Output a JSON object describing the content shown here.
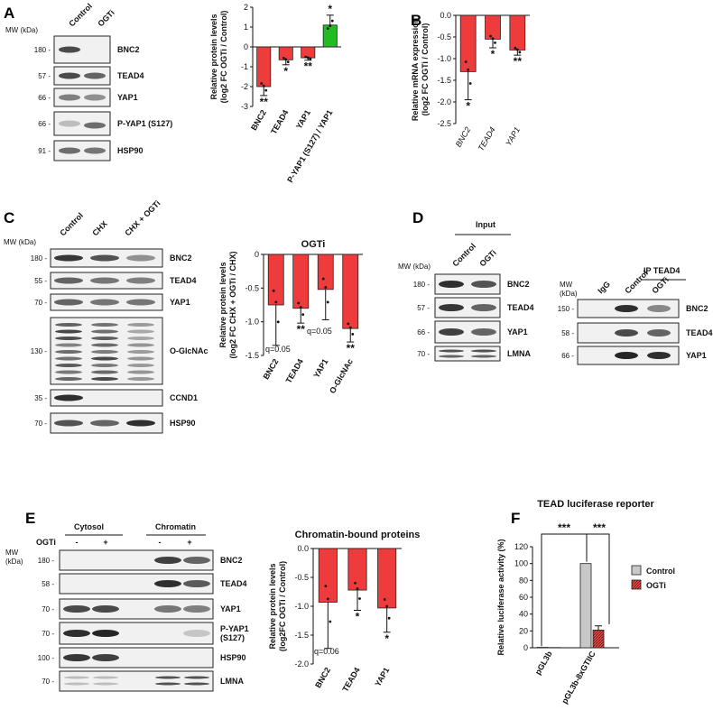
{
  "panels": {
    "A": {
      "label": "A",
      "mw_header": "MW (kDa)",
      "lanes": [
        "Control",
        "OGTi"
      ],
      "blots": [
        {
          "mw": "180 -",
          "name": "BNC2",
          "c": 0.75,
          "t": 0.0
        },
        {
          "mw": "57 -",
          "name": "TEAD4",
          "c": 0.75,
          "t": 0.6
        },
        {
          "mw": "66 -",
          "name": "YAP1",
          "c": 0.45,
          "t": 0.35
        },
        {
          "mw": "66 -",
          "name": "P-YAP1 (S127)",
          "c": 0.1,
          "t": 0.55
        },
        {
          "mw": "91 -",
          "name": "HSP90",
          "c": 0.55,
          "t": 0.5
        }
      ]
    },
    "B": {
      "label": "B"
    },
    "C": {
      "label": "C",
      "mw_header": "MW (kDa)",
      "lanes": [
        "Control",
        "CHX",
        "CHX + OGTi"
      ],
      "blots": [
        {
          "mw": "180 -",
          "name": "BNC2",
          "c": 0.85,
          "t": 0.7,
          "u": 0.35
        },
        {
          "mw": "55 -",
          "name": "TEAD4",
          "c": 0.6,
          "t": 0.5,
          "u": 0.45
        },
        {
          "mw": "70 -",
          "name": "YAP1",
          "c": 0.6,
          "t": 0.5,
          "u": 0.5
        },
        {
          "mw": "130 -",
          "name": "O-GlcNAc",
          "c": 0.8,
          "t": 0.75,
          "u": 0.4
        },
        {
          "mw": "35 -",
          "name": "CCND1",
          "c": 0.9,
          "t": 0.0,
          "u": 0.0
        },
        {
          "mw": "70 -",
          "name": "HSP90",
          "c": 0.7,
          "t": 0.6,
          "u": 0.9
        }
      ]
    },
    "D": {
      "label": "D",
      "input_header": "Input",
      "ip_header": "IP TEAD4",
      "mw_header": "MW (kDa)",
      "mw_header2": "MW\n(kDa)",
      "lanes_input": [
        "Control",
        "OGTi"
      ],
      "lanes_ip": [
        "IgG",
        "Control",
        "OGTi"
      ],
      "blots_input": [
        {
          "mw": "180 -",
          "name": "BNC2"
        },
        {
          "mw": "57 -",
          "name": "TEAD4"
        },
        {
          "mw": "66 -",
          "name": "YAP1"
        },
        {
          "mw": "70 -",
          "name": "LMNA"
        }
      ],
      "blots_ip": [
        {
          "mw": "150 -",
          "name": "BNC2"
        },
        {
          "mw": "58 -",
          "name": "TEAD4"
        },
        {
          "mw": "66 -",
          "name": "YAP1"
        }
      ]
    },
    "E": {
      "label": "E",
      "cytosol": "Cytosol",
      "chromatin": "Chromatin",
      "ogti": "OGTi",
      "minus": "-",
      "plus": "+",
      "mw_header": "MW\n(kDa)",
      "blots": [
        {
          "mw": "180 -",
          "name": "BNC2"
        },
        {
          "mw": "58 -",
          "name": "TEAD4"
        },
        {
          "mw": "70 -",
          "name": "YAP1"
        },
        {
          "mw": "70 -",
          "name": "P-YAP1\n(S127)"
        },
        {
          "mw": "100 -",
          "name": "HSP90"
        },
        {
          "mw": "70 -",
          "name": "LMNA"
        }
      ]
    },
    "F": {
      "label": "F"
    }
  },
  "chart_data": [
    {
      "id": "A",
      "type": "bar",
      "title": "",
      "ylabel": "Relative protein levels (log2 FC OGTi / Control)",
      "categories": [
        "BNC2",
        "TEAD4",
        "YAP1",
        "P-YAP1 (S127) / YAP1"
      ],
      "values": [
        -2.0,
        -0.65,
        -0.55,
        1.1
      ],
      "errors": [
        0.45,
        0.25,
        0.12,
        0.5
      ],
      "colors": [
        "#ee3b3b",
        "#ee3b3b",
        "#ee3b3b",
        "#22bb22"
      ],
      "significance": [
        "**",
        "*",
        "**",
        "*"
      ],
      "ylim": [
        -3,
        2
      ],
      "yticks": [
        "-3",
        "-2",
        "-1",
        "0",
        "1",
        "2"
      ]
    },
    {
      "id": "B",
      "type": "bar",
      "title": "",
      "ylabel": "Relative mRNA expression (log2 FC OGTi / Control)",
      "categories": [
        "BNC2",
        "TEAD4",
        "YAP1"
      ],
      "values": [
        -1.3,
        -0.55,
        -0.8
      ],
      "errors": [
        0.65,
        0.2,
        0.12
      ],
      "colors": [
        "#ee3b3b",
        "#ee3b3b",
        "#ee3b3b"
      ],
      "significance": [
        "*",
        "*",
        "**"
      ],
      "ylim": [
        -2.5,
        0
      ],
      "yticks": [
        "-2.5",
        "-2.0",
        "-1.5",
        "-1.0",
        "-0.5",
        "0.0"
      ]
    },
    {
      "id": "C",
      "type": "bar",
      "title": "OGTi",
      "ylabel": "Relative protein levels (log2 FC CHX + OGTi / CHX)",
      "categories": [
        "BNC2",
        "TEAD4",
        "YAP1",
        "O-GlcNAc"
      ],
      "values": [
        -0.75,
        -0.8,
        -0.52,
        -1.1
      ],
      "errors": [
        0.6,
        0.22,
        0.45,
        0.2
      ],
      "colors": [
        "#ee3b3b",
        "#ee3b3b",
        "#ee3b3b",
        "#ee3b3b"
      ],
      "significance": [
        "",
        "**",
        "",
        "**"
      ],
      "annotations": [
        "q=0.05",
        "q=0.05"
      ],
      "ylim": [
        -1.5,
        0
      ],
      "yticks": [
        "-1.5",
        "-1.0",
        "-0.5",
        "0"
      ]
    },
    {
      "id": "E",
      "type": "bar",
      "title": "Chromatin-bound proteins",
      "ylabel": "Relative protein levels (log2FC OGTi / Control)",
      "categories": [
        "BNC2",
        "TEAD4",
        "YAP1"
      ],
      "values": [
        -0.93,
        -0.72,
        -1.03
      ],
      "errors": [
        0.8,
        0.35,
        0.42
      ],
      "colors": [
        "#ee3b3b",
        "#ee3b3b",
        "#ee3b3b"
      ],
      "significance": [
        "",
        "*",
        "*"
      ],
      "annotations": [
        "q=0.06"
      ],
      "ylim": [
        -2.0,
        0
      ],
      "yticks": [
        "-2.0",
        "-1.5",
        "-1.0",
        "-0.5",
        "0.0"
      ]
    },
    {
      "id": "F",
      "type": "bar",
      "title": "TEAD luciferase reporter",
      "ylabel": "Relative luciferase activity (%)",
      "categories": [
        "pGL3b",
        "pGL3b-8xGTIIC"
      ],
      "series": [
        {
          "name": "Control",
          "values": [
            0.5,
            100
          ],
          "color": "#c8c8c8"
        },
        {
          "name": "OGTi",
          "values": [
            0.3,
            21
          ],
          "color": "#c0392b"
        }
      ],
      "errors_ogti": [
        0,
        5
      ],
      "significance": [
        "***",
        "***"
      ],
      "ylim": [
        0,
        120
      ],
      "yticks": [
        "0",
        "20",
        "40",
        "60",
        "80",
        "100",
        "120"
      ]
    }
  ]
}
